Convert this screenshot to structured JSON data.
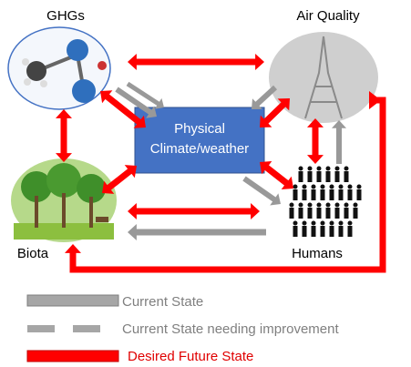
{
  "nodes": [
    {
      "label": "GHGs"
    },
    {
      "label": "Air Quality"
    },
    {
      "label_lines": [
        "Physical",
        "Climate/weather"
      ]
    },
    {
      "label": "Biota"
    },
    {
      "label": "Humans"
    }
  ],
  "legend": [
    {
      "label": "Current State"
    },
    {
      "label": "Current State needing improvement"
    },
    {
      "label": "Desired Future State"
    }
  ]
}
